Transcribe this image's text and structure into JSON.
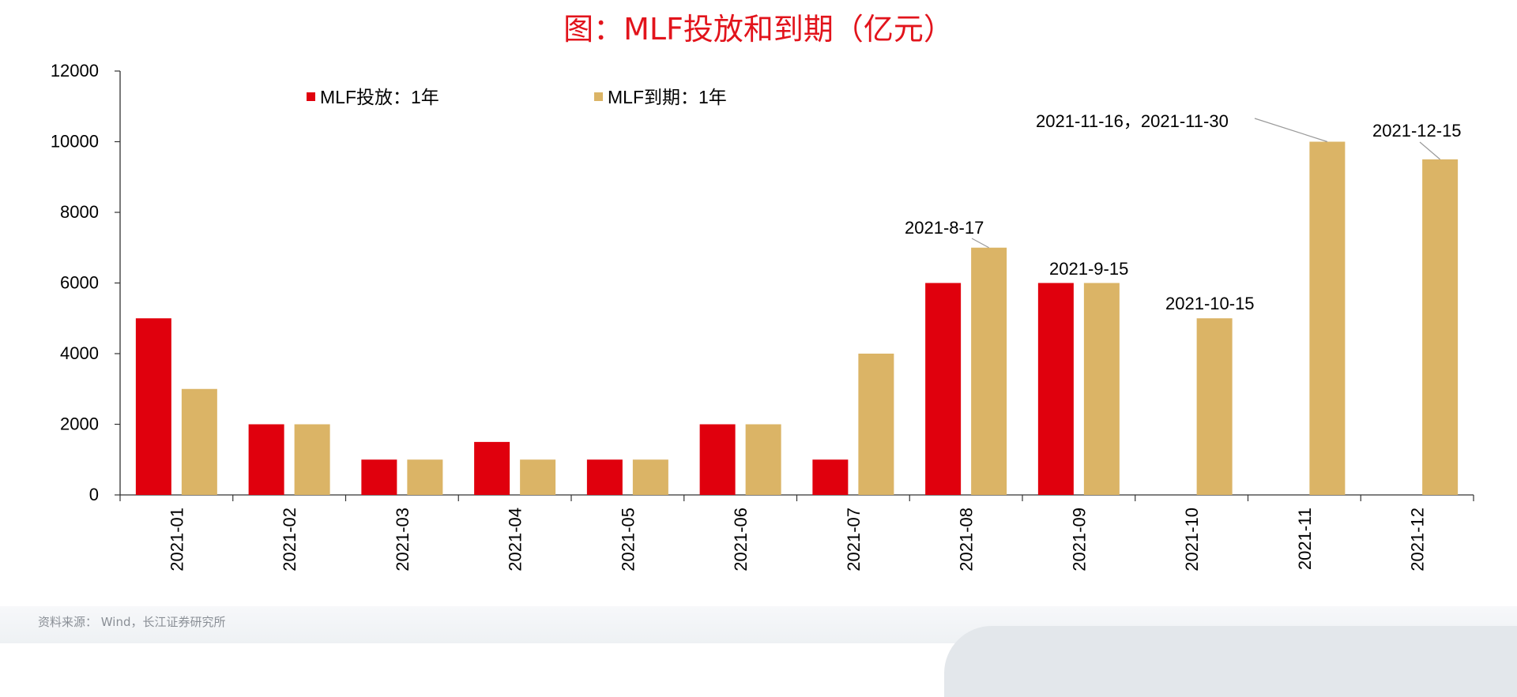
{
  "title": "图：MLF投放和到期（亿元）",
  "source": "资料来源： Wind，长江证券研究所",
  "colors": {
    "title": "#e2141c",
    "issue": "#e0000d",
    "maturity": "#dbb466",
    "axis": "#333333"
  },
  "chart_data": {
    "type": "bar",
    "title": "图：MLF投放和到期（亿元）",
    "xlabel": "",
    "ylabel": "",
    "ylim": [
      0,
      12000
    ],
    "yticks": [
      "0",
      "2000",
      "4000",
      "6000",
      "8000",
      "10000",
      "12000"
    ],
    "grid": false,
    "legend_position": "top-left",
    "categories": [
      "2021-01",
      "2021-02",
      "2021-03",
      "2021-04",
      "2021-05",
      "2021-06",
      "2021-07",
      "2021-08",
      "2021-09",
      "2021-10",
      "2021-11",
      "2021-12"
    ],
    "series": [
      {
        "name": "MLF投放：1年",
        "color": "#e0000d",
        "values": [
          5000,
          2000,
          1000,
          1500,
          1000,
          2000,
          1000,
          6000,
          6000,
          0,
          0,
          0
        ]
      },
      {
        "name": "MLF到期：1年",
        "color": "#dbb466",
        "values": [
          3000,
          2000,
          1000,
          1000,
          1000,
          2000,
          4000,
          7000,
          6000,
          5000,
          10000,
          9500
        ]
      }
    ],
    "annotations": [
      {
        "text": "2021-8-17",
        "category": "2021-08",
        "series": 1,
        "leader": true
      },
      {
        "text": "2021-9-15",
        "category": "2021-09",
        "series": 1,
        "leader": false
      },
      {
        "text": "2021-10-15",
        "category": "2021-10",
        "series": 1,
        "leader": false
      },
      {
        "text": "2021-11-16，2021-11-30",
        "category": "2021-11",
        "series": 1,
        "leader": true
      },
      {
        "text": "2021-12-15",
        "category": "2021-12",
        "series": 1,
        "leader": true
      }
    ]
  }
}
